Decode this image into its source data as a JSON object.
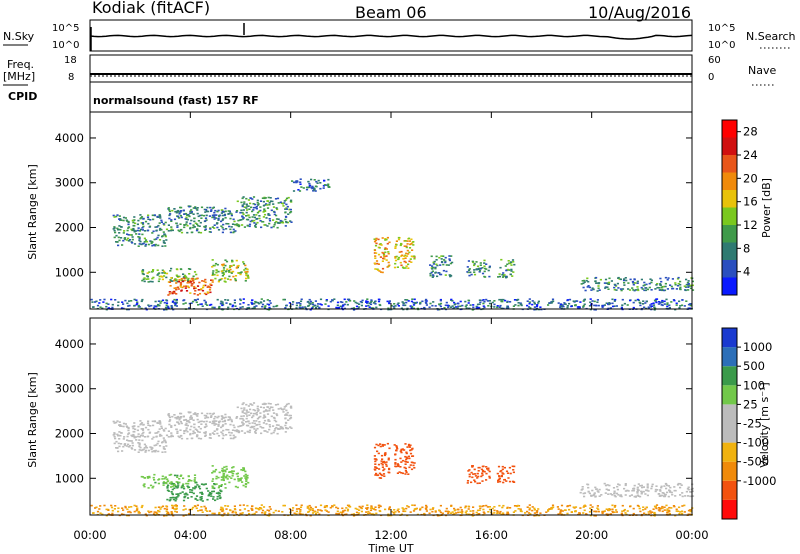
{
  "header": {
    "station": "Kodiak (fitACF)",
    "beam": "Beam 06",
    "date": "10/Aug/2016",
    "program": "normalsound (fast) 157 RF"
  },
  "strip_labels": {
    "nsky": "N.Sky",
    "nsearch": "N.Search",
    "freq_top": "Freq.",
    "freq_unit": "[MHz]",
    "nave": "Nave",
    "cpid": "CPID"
  },
  "strip_ticks": {
    "nsky_left": [
      "10^5",
      "10^0"
    ],
    "nsearch_right": [
      "10^5",
      "10^0"
    ],
    "freq_left": [
      "18",
      "8"
    ],
    "nave_right": [
      "60",
      "0"
    ]
  },
  "colors": {
    "power_scale": [
      "#0a1aff",
      "#2a4fbf",
      "#2f7a72",
      "#3f9a4a",
      "#7ac81f",
      "#e8c20a",
      "#f08a0a",
      "#e8561a",
      "#d01010",
      "#ff0000"
    ],
    "velocity_scale": [
      "#ff0a0a",
      "#f2520f",
      "#f08a0a",
      "#f0b20f",
      "#bcbcbc",
      "#bcbcbc",
      "#72c84a",
      "#3a9a4a",
      "#2c6fb8",
      "#1a3ad0"
    ]
  },
  "chart_data": [
    {
      "type": "heatmap",
      "name": "power",
      "xlabel": "",
      "ylabel": "Slant Range [km]",
      "x_ticks": [
        "00:00",
        "04:00",
        "08:00",
        "12:00",
        "16:00",
        "20:00",
        "00:00"
      ],
      "x_range_hours": [
        0,
        24
      ],
      "y_ticks": [
        "1000",
        "2000",
        "3000",
        "4000"
      ],
      "ylim": [
        180,
        4580
      ],
      "colorbar_label": "Power [dB]",
      "colorbar_ticks": [
        "4",
        "8",
        "12",
        "16",
        "20",
        "24",
        "28"
      ],
      "clim": [
        0,
        30
      ],
      "echo_regions": [
        {
          "t": [
            0.9,
            3.0
          ],
          "r": [
            1600,
            2300
          ],
          "value": 8
        },
        {
          "t": [
            3.0,
            5.8
          ],
          "r": [
            1900,
            2500
          ],
          "value": 8
        },
        {
          "t": [
            5.8,
            8.0
          ],
          "r": [
            2000,
            2700
          ],
          "value": 9
        },
        {
          "t": [
            8.0,
            9.5
          ],
          "r": [
            2800,
            3100
          ],
          "value": 7
        },
        {
          "t": [
            2.0,
            4.2
          ],
          "r": [
            800,
            1100
          ],
          "value": 12
        },
        {
          "t": [
            3.0,
            4.8
          ],
          "r": [
            500,
            900
          ],
          "value": 22
        },
        {
          "t": [
            4.8,
            6.3
          ],
          "r": [
            800,
            1300
          ],
          "value": 14
        },
        {
          "t": [
            11.3,
            11.9
          ],
          "r": [
            1000,
            1800
          ],
          "value": 18
        },
        {
          "t": [
            12.1,
            12.9
          ],
          "r": [
            1100,
            1800
          ],
          "value": 17
        },
        {
          "t": [
            13.5,
            14.4
          ],
          "r": [
            900,
            1400
          ],
          "value": 8
        },
        {
          "t": [
            15.0,
            15.9
          ],
          "r": [
            900,
            1300
          ],
          "value": 9
        },
        {
          "t": [
            16.2,
            16.9
          ],
          "r": [
            900,
            1300
          ],
          "value": 10
        },
        {
          "t": [
            19.5,
            24.0
          ],
          "r": [
            600,
            900
          ],
          "value": 8
        },
        {
          "t": [
            0.0,
            24.0
          ],
          "r": [
            180,
            420
          ],
          "value": 6
        }
      ]
    },
    {
      "type": "heatmap",
      "name": "velocity",
      "xlabel": "Time UT",
      "ylabel": "Slant Range [km]",
      "x_ticks": [
        "00:00",
        "04:00",
        "08:00",
        "12:00",
        "16:00",
        "20:00",
        "00:00"
      ],
      "x_range_hours": [
        0,
        24
      ],
      "y_ticks": [
        "1000",
        "2000",
        "3000",
        "4000"
      ],
      "ylim": [
        180,
        4580
      ],
      "colorbar_label": "Velocity [m s⁻¹]",
      "colorbar_ticks": [
        "1000",
        "500",
        "100",
        "25",
        "-25",
        "-100",
        "-500",
        "-1000"
      ],
      "echo_regions": [
        {
          "t": [
            0.9,
            3.0
          ],
          "r": [
            1600,
            2300
          ],
          "value": 0
        },
        {
          "t": [
            3.0,
            5.8
          ],
          "r": [
            1900,
            2500
          ],
          "value": 0
        },
        {
          "t": [
            5.8,
            8.0
          ],
          "r": [
            2000,
            2700
          ],
          "value": 0
        },
        {
          "t": [
            2.0,
            4.2
          ],
          "r": [
            800,
            1100
          ],
          "value": 80
        },
        {
          "t": [
            3.0,
            5.2
          ],
          "r": [
            500,
            900
          ],
          "value": 150
        },
        {
          "t": [
            4.8,
            6.3
          ],
          "r": [
            800,
            1300
          ],
          "value": 60
        },
        {
          "t": [
            11.3,
            11.9
          ],
          "r": [
            1000,
            1800
          ],
          "value": -300
        },
        {
          "t": [
            12.1,
            12.9
          ],
          "r": [
            1100,
            1800
          ],
          "value": -300
        },
        {
          "t": [
            15.0,
            15.9
          ],
          "r": [
            900,
            1300
          ],
          "value": -250
        },
        {
          "t": [
            16.2,
            16.9
          ],
          "r": [
            900,
            1300
          ],
          "value": -200
        },
        {
          "t": [
            19.5,
            24.0
          ],
          "r": [
            600,
            900
          ],
          "value": 0
        },
        {
          "t": [
            0.0,
            24.0
          ],
          "r": [
            180,
            420
          ],
          "value": -50
        }
      ]
    }
  ]
}
